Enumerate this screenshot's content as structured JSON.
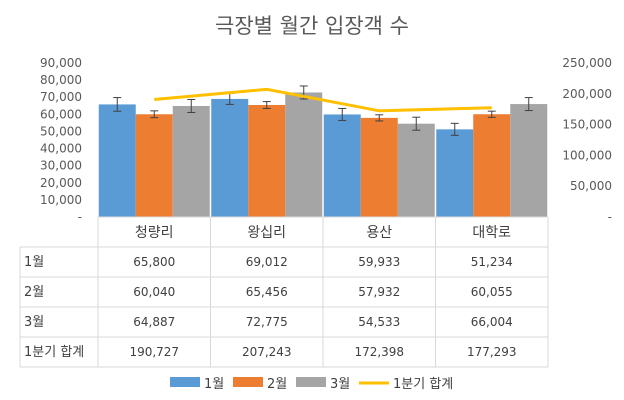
{
  "chart_data": {
    "type": "bar",
    "title": "극장별 월간 입장객 수",
    "categories": [
      "청량리",
      "왕십리",
      "용산",
      "대학로"
    ],
    "series": [
      {
        "name": "1월",
        "values": [
          65800,
          69012,
          59933,
          51234
        ],
        "color": "#5B9BD5",
        "axis": "left",
        "error": [
          4000,
          3200,
          3500,
          3500
        ]
      },
      {
        "name": "2월",
        "values": [
          60040,
          65456,
          57932,
          60055
        ],
        "color": "#ED7D31",
        "axis": "left",
        "error": [
          2000,
          2000,
          1800,
          1800
        ]
      },
      {
        "name": "3월",
        "values": [
          64887,
          72775,
          54533,
          66004
        ],
        "color": "#A5A5A5",
        "axis": "left",
        "error": [
          3800,
          3800,
          3800,
          3800
        ]
      },
      {
        "name": "1분기 합계",
        "type": "line",
        "values": [
          190727,
          207243,
          172398,
          177293
        ],
        "color": "#FFC000",
        "axis": "right"
      }
    ],
    "y_left": {
      "ylim": [
        0,
        90000
      ],
      "ticks": [
        "-",
        "10,000",
        "20,000",
        "30,000",
        "40,000",
        "50,000",
        "60,000",
        "70,000",
        "80,000",
        "90,000"
      ]
    },
    "y_right": {
      "ylim": [
        0,
        250000
      ],
      "ticks": [
        "-",
        "50,000",
        "100,000",
        "150,000",
        "200,000",
        "250,000"
      ]
    },
    "data_table": {
      "rows": [
        {
          "label": "1월",
          "cells": [
            "65,800",
            "69,012",
            "59,933",
            "51,234"
          ]
        },
        {
          "label": "2월",
          "cells": [
            "60,040",
            "65,456",
            "57,932",
            "60,055"
          ]
        },
        {
          "label": "3월",
          "cells": [
            "64,887",
            "72,775",
            "54,533",
            "66,004"
          ]
        },
        {
          "label": "1분기 합계",
          "cells": [
            "190,727",
            "207,243",
            "172,398",
            "177,293"
          ]
        }
      ]
    },
    "legend": {
      "placement": "bottom",
      "items": [
        "1월",
        "2월",
        "3월",
        "1분기 합계"
      ]
    },
    "grid": false
  }
}
